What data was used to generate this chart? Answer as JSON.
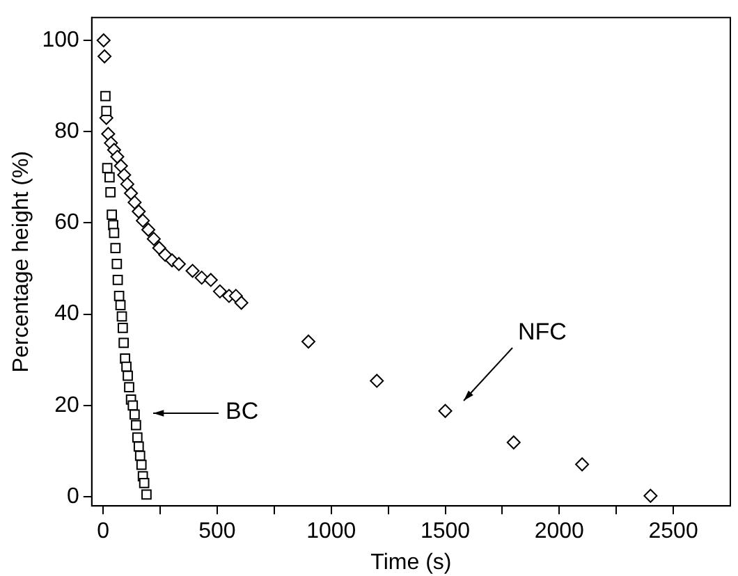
{
  "chart_data": {
    "type": "scatter",
    "xlabel": "Time (s)",
    "ylabel": "Percentage height (%)",
    "xlim": [
      -50,
      2750
    ],
    "ylim": [
      -2,
      105
    ],
    "xticks": [
      0,
      {
        "value": 250,
        "label": null
      },
      500,
      {
        "value": 750,
        "label": null
      },
      1000,
      {
        "value": 1250,
        "label": null
      },
      1500,
      {
        "value": 1750,
        "label": null
      },
      2000,
      {
        "value": 2250,
        "label": null
      },
      2500
    ],
    "yticks": [
      0,
      20,
      40,
      60,
      80,
      100
    ],
    "grid": false,
    "legend": false,
    "series": [
      {
        "color": "#000000",
        "marker": "square",
        "x": [
          10,
          14,
          18,
          28,
          32,
          38,
          44,
          48,
          54,
          60,
          64,
          70,
          76,
          82,
          86,
          90,
          96,
          102,
          108,
          114,
          122,
          130,
          138,
          144,
          150,
          156,
          162,
          168,
          174,
          180,
          190
        ],
        "values": [
          87.8,
          84.5,
          72,
          70,
          66.7,
          61.8,
          59.5,
          57.8,
          54.5,
          51,
          47.5,
          44,
          42,
          39.5,
          37,
          33.7,
          30.3,
          28.5,
          26.5,
          24,
          21.3,
          20,
          18,
          15.7,
          13,
          11,
          9,
          7,
          4.5,
          3,
          0.5
        ]
      },
      {
        "color": "#000000",
        "marker": "diamond",
        "x": [
          2,
          6,
          14,
          22,
          34,
          48,
          62,
          78,
          92,
          106,
          122,
          138,
          156,
          174,
          198,
          222,
          246,
          272,
          302,
          332,
          392,
          432,
          472,
          512,
          552,
          582,
          606,
          900,
          1200,
          1500,
          1800,
          2100,
          2400
        ],
        "values": [
          100,
          96.5,
          83,
          79.5,
          77.5,
          76,
          74.5,
          72.5,
          70.5,
          68.5,
          66.5,
          64.5,
          62.5,
          60.5,
          58.5,
          56.5,
          54.5,
          53,
          51.8,
          51,
          49.5,
          48,
          47.5,
          45,
          44,
          44,
          42.5,
          34,
          25.4,
          18.8,
          11.9,
          7.1,
          0.2
        ]
      }
    ],
    "annotations": [
      "BC",
      "NFC"
    ]
  }
}
